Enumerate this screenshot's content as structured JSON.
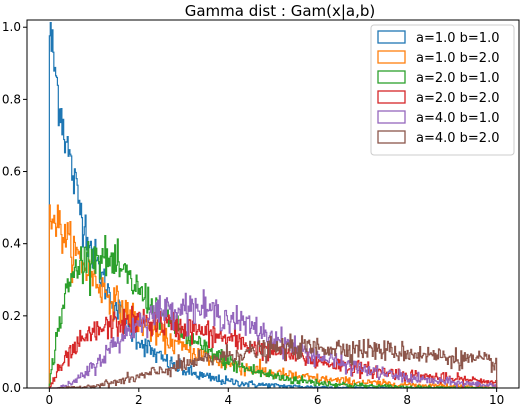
{
  "chart_data": {
    "type": "line",
    "style": "step-histogram",
    "title": "Gamma dist : Gam(x|a,b)",
    "xlabel": "",
    "ylabel": "",
    "xlim": [
      -0.5,
      10.5
    ],
    "ylim": [
      0.0,
      1.02
    ],
    "xticks": [
      0,
      2,
      4,
      6,
      8,
      10
    ],
    "yticks": [
      0.0,
      0.2,
      0.4,
      0.6,
      0.8,
      1.0
    ],
    "xtick_labels": [
      "0",
      "2",
      "4",
      "6",
      "8",
      "10"
    ],
    "ytick_labels": [
      "0.0",
      "0.2",
      "0.4",
      "0.6",
      "0.8",
      "1.0"
    ],
    "grid": false,
    "legend_position": "top-right",
    "x_range": [
      0,
      10
    ],
    "bins": 500,
    "series": [
      {
        "name": "a=1.0 b=1.0",
        "a": 1.0,
        "b": 1.0,
        "color": "#1f77b4"
      },
      {
        "name": "a=1.0 b=2.0",
        "a": 1.0,
        "b": 2.0,
        "color": "#ff7f0e"
      },
      {
        "name": "a=2.0 b=1.0",
        "a": 2.0,
        "b": 1.0,
        "color": "#2ca02c"
      },
      {
        "name": "a=2.0 b=2.0",
        "a": 2.0,
        "b": 2.0,
        "color": "#d62728"
      },
      {
        "name": "a=4.0 b=1.0",
        "a": 4.0,
        "b": 1.0,
        "color": "#9467bd"
      },
      {
        "name": "a=4.0 b=2.0",
        "a": 4.0,
        "b": 2.0,
        "color": "#8c564b"
      }
    ]
  }
}
